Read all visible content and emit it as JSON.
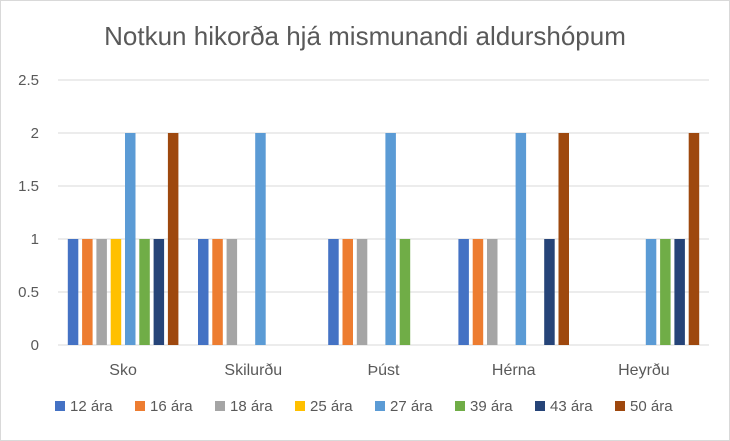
{
  "chart_data": {
    "type": "bar",
    "title": "Notkun hikorða hjá mismunandi aldurshópum",
    "xlabel": "",
    "ylabel": "",
    "categories": [
      "Sko",
      "Skilurðu",
      "Þúst",
      "Hérna",
      "Heyrðu"
    ],
    "ylim": [
      0,
      2.5
    ],
    "yticks": [
      "0",
      "0.5",
      "1",
      "1.5",
      "2",
      "2.5"
    ],
    "ytick_values": [
      0,
      0.5,
      1,
      1.5,
      2,
      2.5
    ],
    "grid": true,
    "legend_position": "bottom",
    "series": [
      {
        "name": "12 ára",
        "color": "#4472C4",
        "values": [
          1,
          1,
          1,
          1,
          0
        ]
      },
      {
        "name": "16 ára",
        "color": "#ED7D31",
        "values": [
          1,
          1,
          1,
          1,
          0
        ]
      },
      {
        "name": "18 ára",
        "color": "#A5A5A5",
        "values": [
          1,
          1,
          1,
          1,
          0
        ]
      },
      {
        "name": "25 ára",
        "color": "#FFC000",
        "values": [
          1,
          0,
          0,
          0,
          0
        ]
      },
      {
        "name": "27 ára",
        "color": "#5B9BD5",
        "values": [
          2,
          2,
          2,
          2,
          1
        ]
      },
      {
        "name": "39 ára",
        "color": "#70AD47",
        "values": [
          1,
          0,
          1,
          0,
          1
        ]
      },
      {
        "name": "43 ára",
        "color": "#264478",
        "values": [
          1,
          0,
          0,
          1,
          1
        ]
      },
      {
        "name": "50 ára",
        "color": "#9E480E",
        "values": [
          2,
          0,
          0,
          2,
          2
        ]
      }
    ]
  }
}
